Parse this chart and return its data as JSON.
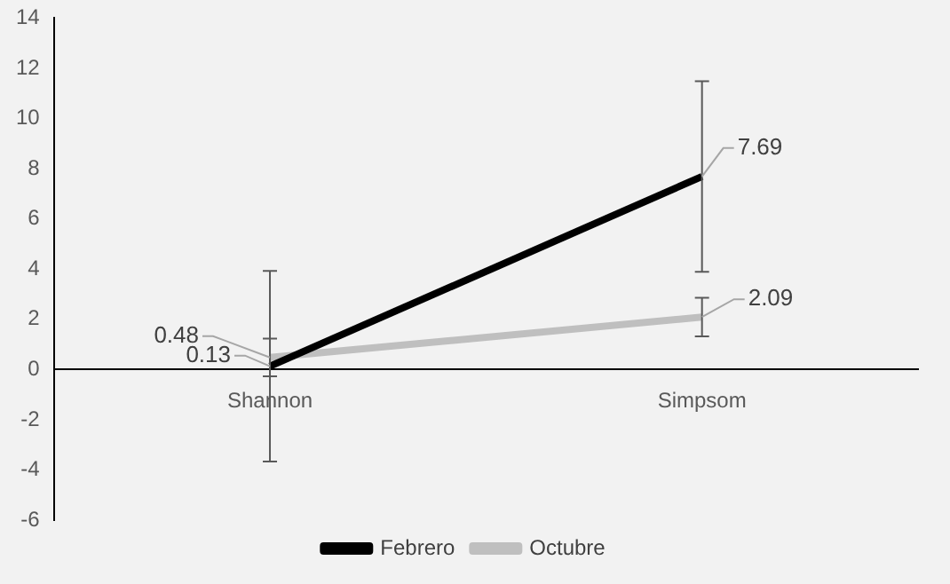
{
  "chart_data": {
    "type": "line",
    "categories": [
      "Shannon",
      "Simpsom"
    ],
    "series": [
      {
        "name": "Febrero",
        "color": "#000000",
        "values": [
          0.13,
          7.69
        ],
        "errors": [
          3.8,
          3.8
        ]
      },
      {
        "name": "Octubre",
        "color": "#bfbfbf",
        "values": [
          0.48,
          2.09
        ],
        "errors": [
          0.75,
          0.77
        ]
      }
    ],
    "ylim": [
      -6,
      14
    ],
    "yticks": [
      -6,
      -4,
      -2,
      0,
      2,
      4,
      6,
      8,
      10,
      12,
      14
    ],
    "grid": false,
    "legend": "bottom",
    "marker": "none",
    "data_labels": true
  }
}
